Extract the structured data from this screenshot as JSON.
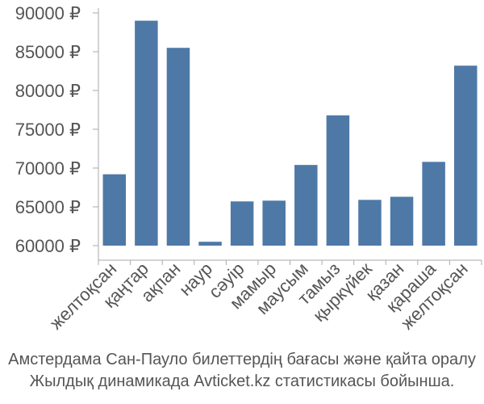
{
  "chart_data": {
    "type": "bar",
    "categories": [
      "желтоқсан",
      "қаңтар",
      "ақпан",
      "наур",
      "сәуір",
      "мамыр",
      "маусым",
      "тамыз",
      "қыркүйек",
      "қазан",
      "қараша",
      "желтоқсан"
    ],
    "values": [
      69200,
      89000,
      85500,
      60500,
      65700,
      65800,
      70400,
      76800,
      65900,
      66300,
      70800,
      83200
    ],
    "ylim": [
      60000,
      90000
    ],
    "yticks": [
      60000,
      65000,
      70000,
      75000,
      80000,
      85000,
      90000
    ],
    "ytick_labels": [
      "60000 ₽",
      "65000 ₽",
      "70000 ₽",
      "75000 ₽",
      "80000 ₽",
      "85000 ₽",
      "90000 ₽"
    ],
    "grid": false,
    "bar_color": "#4e79a7",
    "axis_color": "#aaaaaa"
  },
  "caption": {
    "line1": "Амстердама Сан-Пауло билеттердің бағасы және қайта оралу",
    "line2": "Жылдық динамикада Avticket.kz статистикасы бойынша."
  }
}
